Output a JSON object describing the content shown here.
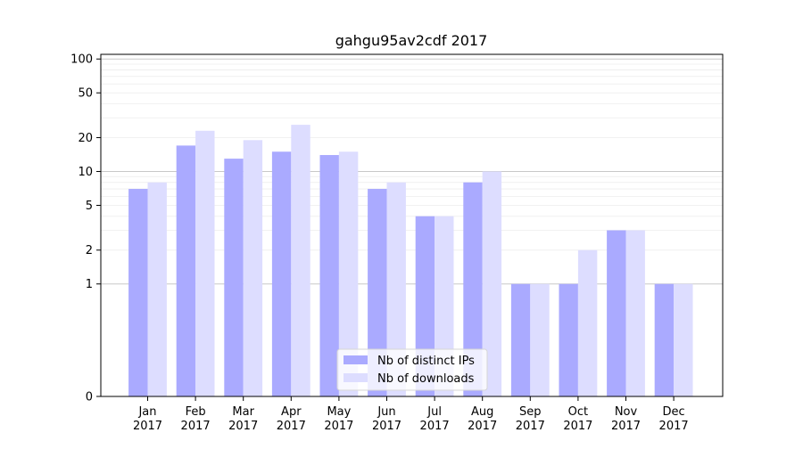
{
  "chart_data": {
    "type": "bar",
    "title": "gahgu95av2cdf 2017",
    "xlabel": "",
    "ylabel": "",
    "yscale": "symlog",
    "ylim": [
      0,
      110
    ],
    "yticks": [
      0,
      1,
      2,
      5,
      10,
      20,
      50,
      100
    ],
    "grid": true,
    "legend_position": "lower-center",
    "categories": [
      [
        "Jan",
        "2017"
      ],
      [
        "Feb",
        "2017"
      ],
      [
        "Mar",
        "2017"
      ],
      [
        "Apr",
        "2017"
      ],
      [
        "May",
        "2017"
      ],
      [
        "Jun",
        "2017"
      ],
      [
        "Jul",
        "2017"
      ],
      [
        "Aug",
        "2017"
      ],
      [
        "Sep",
        "2017"
      ],
      [
        "Oct",
        "2017"
      ],
      [
        "Nov",
        "2017"
      ],
      [
        "Dec",
        "2017"
      ]
    ],
    "series": [
      {
        "name": "Nb of distinct IPs",
        "color": "#aaaaff",
        "values": [
          7,
          17,
          13,
          15,
          14,
          7,
          4,
          8,
          1,
          1,
          3,
          1
        ]
      },
      {
        "name": "Nb of downloads",
        "color": "#ddddff",
        "values": [
          8,
          23,
          19,
          26,
          15,
          8,
          4,
          10,
          1,
          2,
          3,
          1
        ]
      }
    ]
  }
}
